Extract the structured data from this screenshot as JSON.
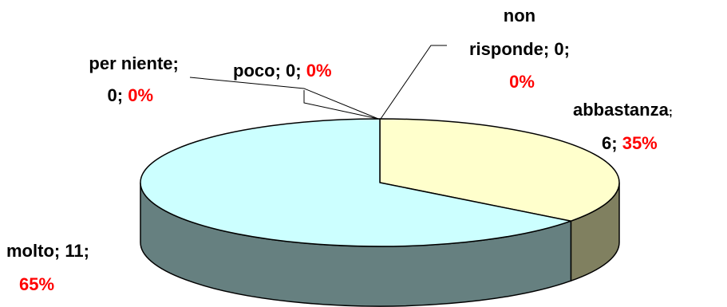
{
  "chart_data": {
    "type": "pie",
    "style": "3d",
    "slices": [
      {
        "name": "abbastanza",
        "count": "6",
        "percent": "35%",
        "value": 6,
        "color": "#ffffcc",
        "side_color": "#808060"
      },
      {
        "name": "molto",
        "count": "11",
        "percent": "65%",
        "value": 11,
        "color": "#ccffff",
        "side_color": "#668080"
      },
      {
        "name": "per niente",
        "count": "0",
        "percent": "0%",
        "value": 0
      },
      {
        "name": "poco",
        "count": "0",
        "percent": "0%",
        "value": 0
      },
      {
        "name": "non risponde",
        "count": "0",
        "percent": "0%",
        "value": 0
      }
    ],
    "colors": {
      "label_text": "#000000",
      "percent_text": "#ff0000",
      "outline": "#000000"
    }
  }
}
